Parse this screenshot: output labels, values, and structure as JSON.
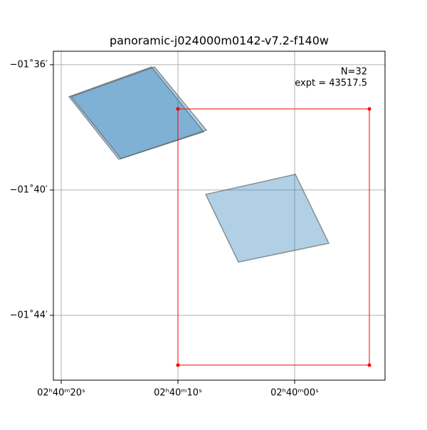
{
  "chart_data": {
    "type": "footprint",
    "title": "panoramic-j024000m0142-v7.2-f140w",
    "annotations": [
      "N=32",
      "expt = 43517.5"
    ],
    "xlim": [
      20.67,
      -7.74
    ],
    "ylim": [
      -95.57,
      -106.07
    ],
    "xticks": [
      {
        "value": 20,
        "label": "02ʰ40ᵐ20ˢ"
      },
      {
        "value": 10,
        "label": "02ʰ40ᵐ10ˢ"
      },
      {
        "value": 0,
        "label": "02ʰ40ᵐ00ˢ"
      }
    ],
    "yticks": [
      {
        "value": -96,
        "label": "−01˚36′"
      },
      {
        "value": -100,
        "label": "−01˚40′"
      },
      {
        "value": -104,
        "label": "−01˚44′"
      }
    ],
    "grid": true,
    "series": [
      {
        "kind": "polygon",
        "color": "#1f77b4",
        "x": [
          19.33,
          12.26,
          7.8,
          15.06
        ],
        "y": [
          -97.02,
          -96.07,
          -98.14,
          -99.02
        ]
      },
      {
        "kind": "polygon",
        "color": "#1f77b4",
        "x": [
          19.15,
          12.01,
          7.56,
          14.88
        ],
        "y": [
          -97.02,
          -96.07,
          -98.09,
          -99.0
        ]
      },
      {
        "kind": "polygon",
        "color": "#1f77b4",
        "x": [
          7.62,
          -0.06,
          -2.93,
          4.82
        ],
        "y": [
          -100.14,
          -99.5,
          -101.7,
          -102.3
        ]
      },
      {
        "kind": "outline",
        "color": "#ff0000",
        "x": [
          10.0,
          -6.4,
          -6.4,
          10.0,
          10.0
        ],
        "y": [
          -97.41,
          -97.41,
          -105.59,
          -105.59,
          -97.41
        ]
      }
    ]
  }
}
